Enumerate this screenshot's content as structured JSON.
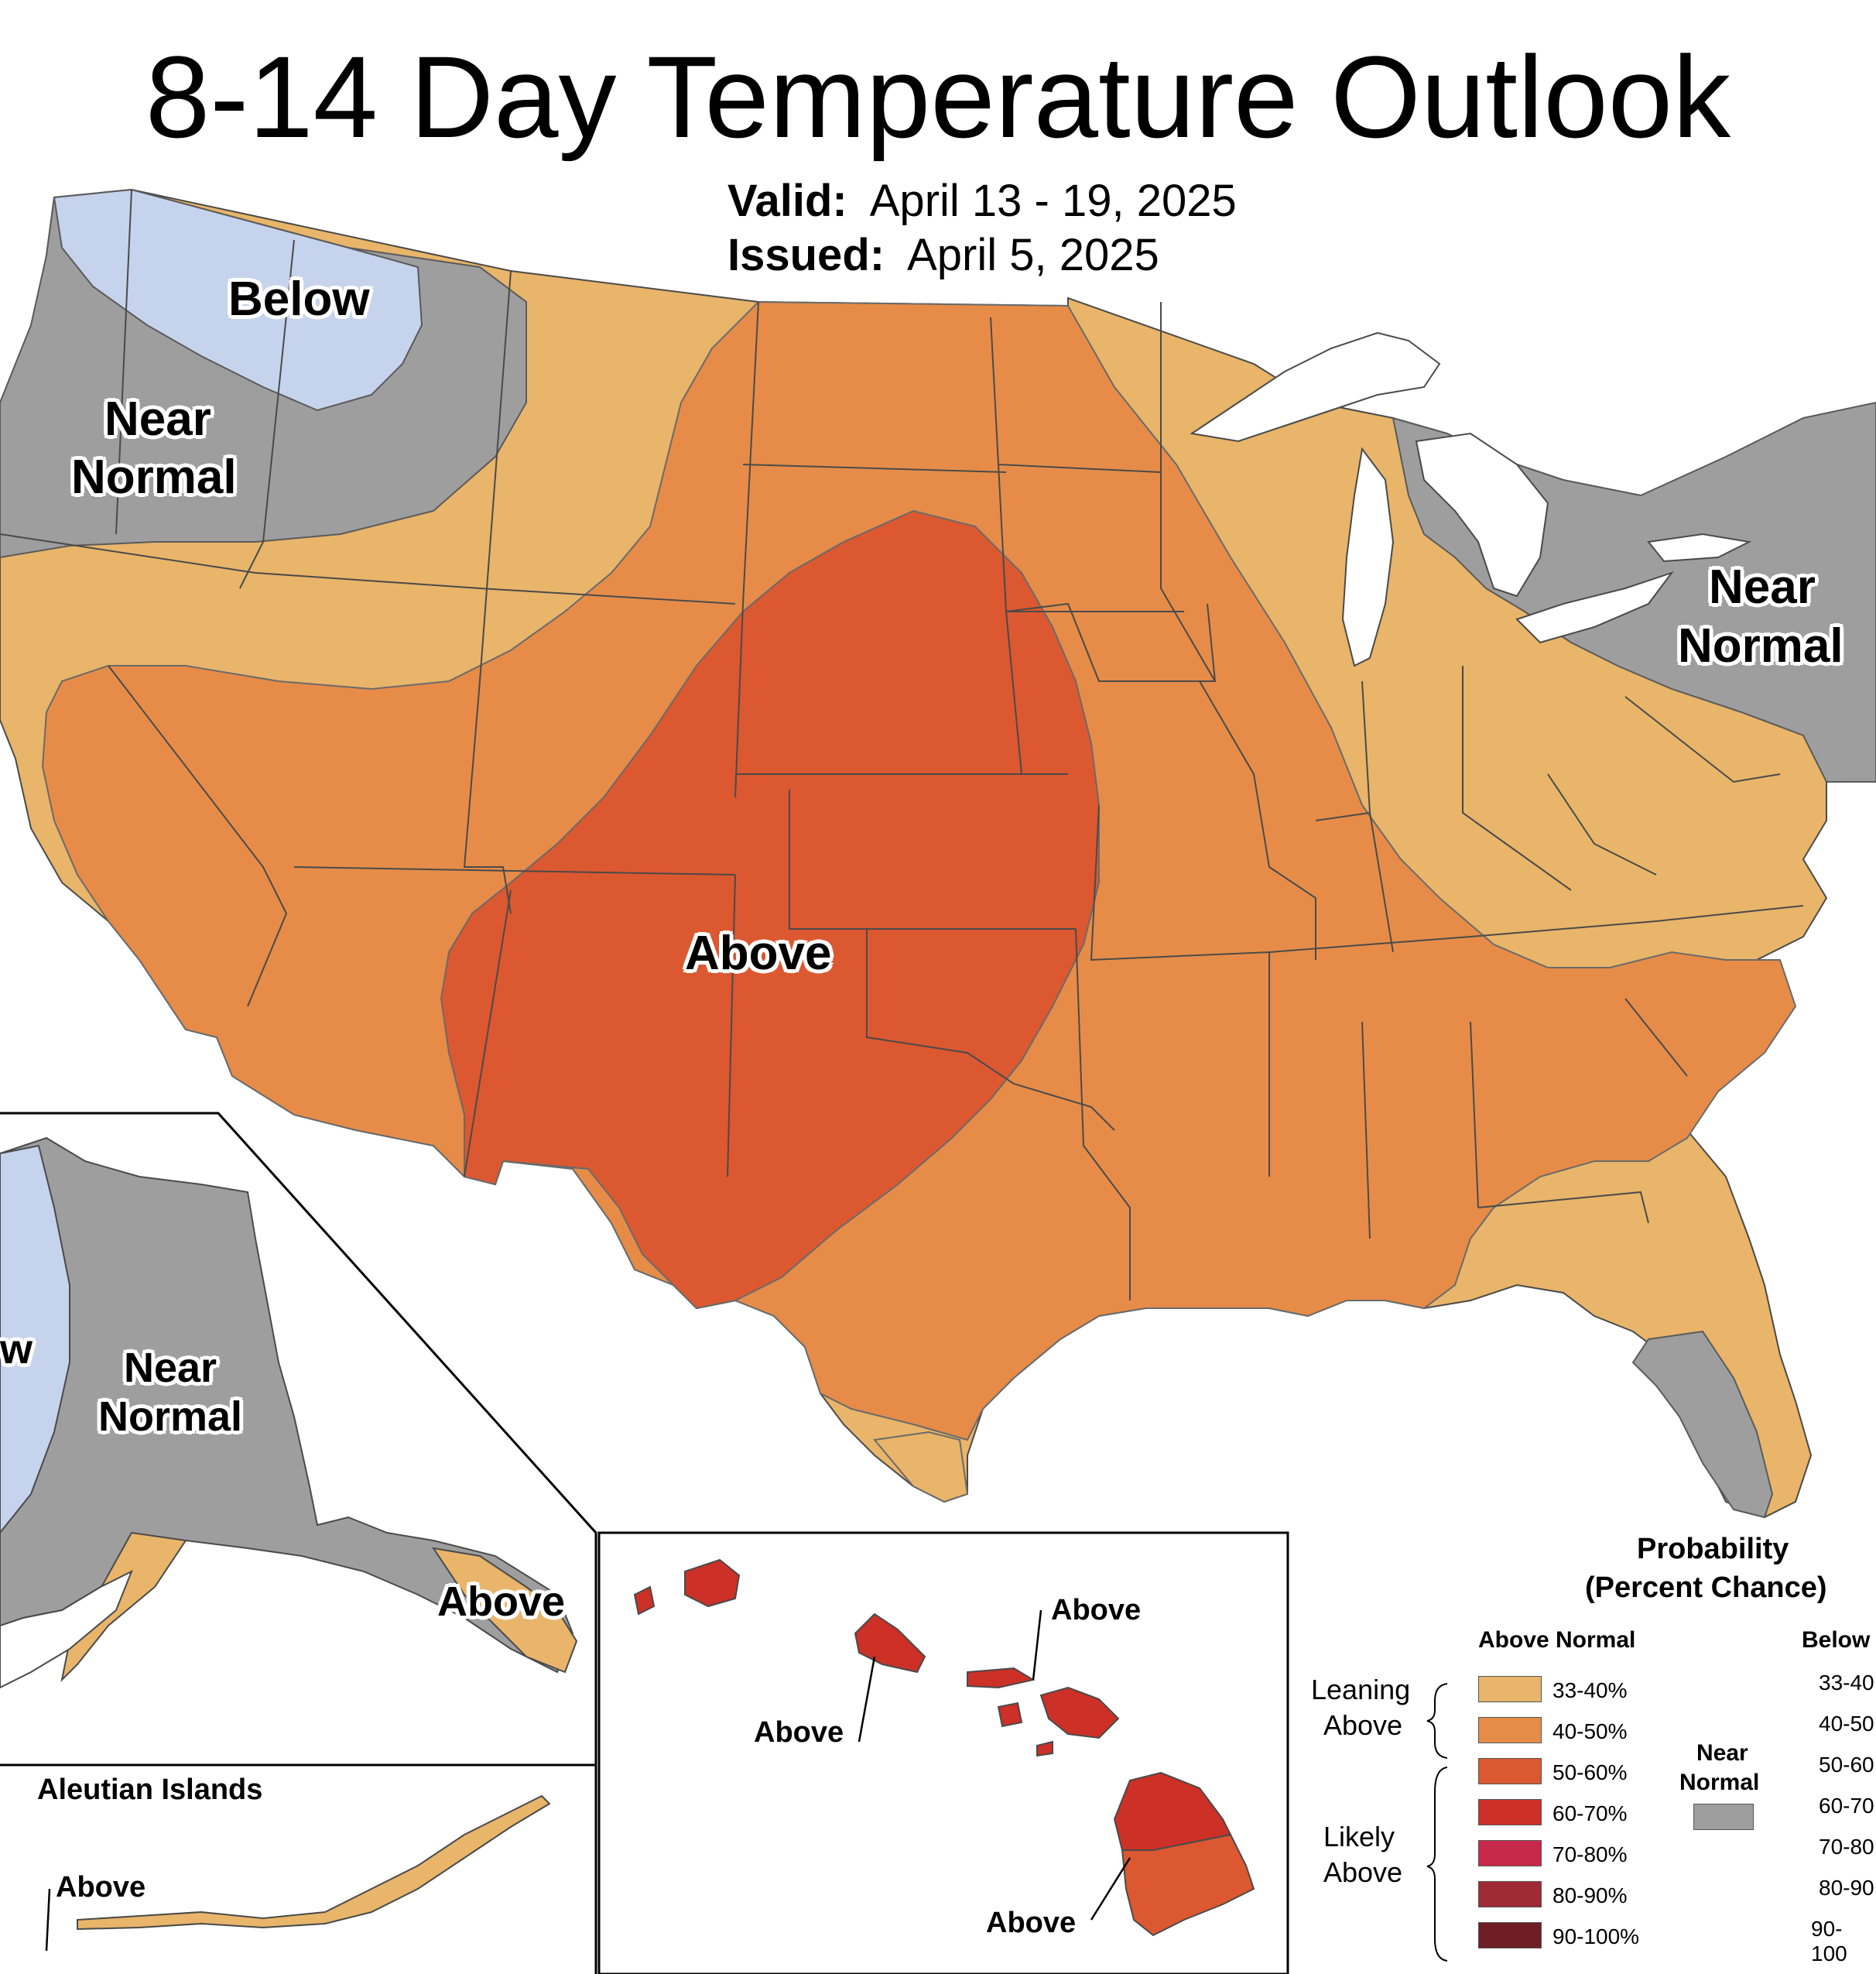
{
  "title": "8-14 Day Temperature Outlook",
  "valid_label": "Valid:",
  "valid_value": "April 13 - 19, 2025",
  "issued_label": "Issued:",
  "issued_value": "April 5, 2025",
  "region_labels": {
    "conus_below": "Below",
    "conus_near_nw_1": "Near",
    "conus_near_nw_2": "Normal",
    "conus_near_ne_1": "Near",
    "conus_near_ne_2": "Normal",
    "conus_above": "Above",
    "alaska_below_partial": "w",
    "alaska_near_1": "Near",
    "alaska_near_2": "Normal",
    "alaska_above": "Above",
    "aleutian_title": "Aleutian Islands",
    "aleutian_above": "Above",
    "hawaii_above_1": "Above",
    "hawaii_above_2": "Above",
    "hawaii_above_3": "Above"
  },
  "colors": {
    "below_33_40": "#c6d3ec",
    "near_normal": "#9e9e9e",
    "above_33_40": "#e8b56a",
    "above_40_50": "#e68c48",
    "above_50_60": "#dc5830",
    "above_60_70": "#cc3026",
    "above_70_80": "#c8284a",
    "above_80_90": "#9e2a36",
    "above_90_100": "#6e1e24",
    "lake_white": "#ffffff",
    "border": "#4a4a4a"
  },
  "legend": {
    "title_1": "Probability",
    "title_2": "(Percent Chance)",
    "above_header": "Above Normal",
    "below_header": "Below",
    "leaning_1": "Leaning",
    "leaning_2": "Above",
    "likely_1": "Likely",
    "likely_2": "Above",
    "near_1": "Near",
    "near_2": "Normal",
    "rows": [
      "33-40%",
      "40-50%",
      "50-60%",
      "60-70%",
      "70-80%",
      "80-90%",
      "90-100%"
    ],
    "below_rows": [
      "33-40",
      "40-50",
      "50-60",
      "60-70",
      "70-80",
      "80-90",
      "90-100"
    ]
  }
}
